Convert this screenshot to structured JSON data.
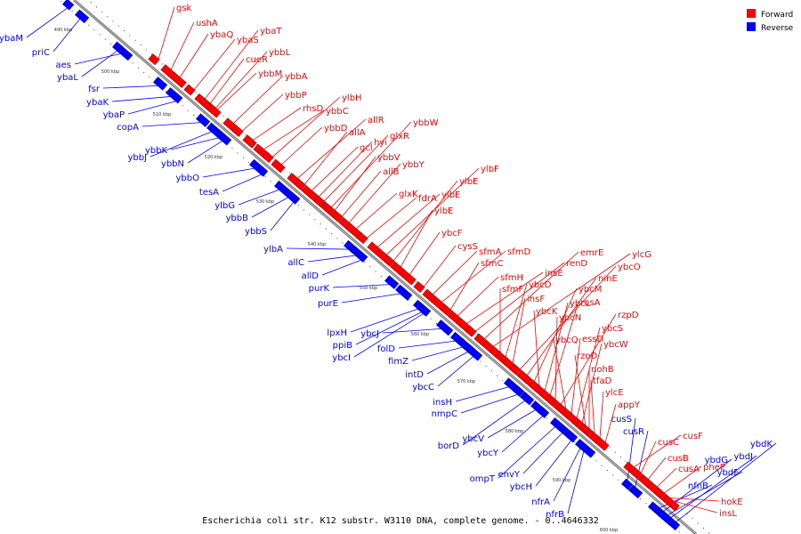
{
  "caption": "Escherichia coli str. K12 substr. W3110 DNA, complete genome. - 0..4646332",
  "legend": {
    "forward_label": "Forward",
    "reverse_label": "Reverse",
    "forward_color": "#ff0000",
    "reverse_color": "#0000ff"
  },
  "kbp_markers": [
    "490 kbp",
    "500 kbp",
    "510 kbp",
    "520 kbp",
    "530 kbp",
    "540 kbp",
    "550 kbp",
    "560 kbp",
    "570 kbp",
    "580 kbp",
    "590 kbp",
    "600 kbp"
  ],
  "forward_genes": [
    "gsk",
    "ushA",
    "ybaQ",
    "ybaS",
    "ybaT",
    "cueR",
    "ybbL",
    "ybbM",
    "ybbA",
    "ybbP",
    "rhsD",
    "ybbC",
    "ylbH",
    "ybbD",
    "allR",
    "allA",
    "gcl",
    "hyi",
    "glxR",
    "ybbW",
    "ybbV",
    "allB",
    "ybbY",
    "glxK",
    "fdrA",
    "ylbE",
    "ylbF",
    "ylbE",
    "ylbE",
    "ybcF",
    "cysS",
    "sfmA",
    "sfmD",
    "sfmC",
    "sfmH",
    "insE",
    "renD",
    "emrE",
    "ylcG",
    "sfmF",
    "ybcD",
    "insF",
    "ybcO",
    "ninE",
    "ybcM",
    "ybcK",
    "ybcL",
    "rusA",
    "ybcN",
    "rzpD",
    "ybcQ",
    "essD",
    "ybcS",
    "ybcW",
    "rzoD",
    "nohB",
    "tfaD",
    "ylcE",
    "appY",
    "cusF",
    "cusC",
    "cusB",
    "cusA",
    "pheP",
    "hokE",
    "insL"
  ],
  "reverse_genes": [
    "ybaM",
    "priC",
    "aes",
    "ybaL",
    "fsr",
    "ybaK",
    "ybaP",
    "copA",
    "ybbJ",
    "ybbK",
    "ybbN",
    "ybbO",
    "tesA",
    "ylbG",
    "ybbB",
    "ybbS",
    "ylbA",
    "allC",
    "allD",
    "purK",
    "purE",
    "lpxH",
    "ppiB",
    "ybcJ",
    "ybcI",
    "folD",
    "fimZ",
    "intD",
    "ybcC",
    "insH",
    "nmpC",
    "borD",
    "ybcV",
    "ybcY",
    "ompT",
    "envY",
    "ybcH",
    "nfrA",
    "nfrB",
    "cusS",
    "cusR",
    "ybdG",
    "ybdJ",
    "ybdK",
    "ybdF",
    "nfnB"
  ]
}
